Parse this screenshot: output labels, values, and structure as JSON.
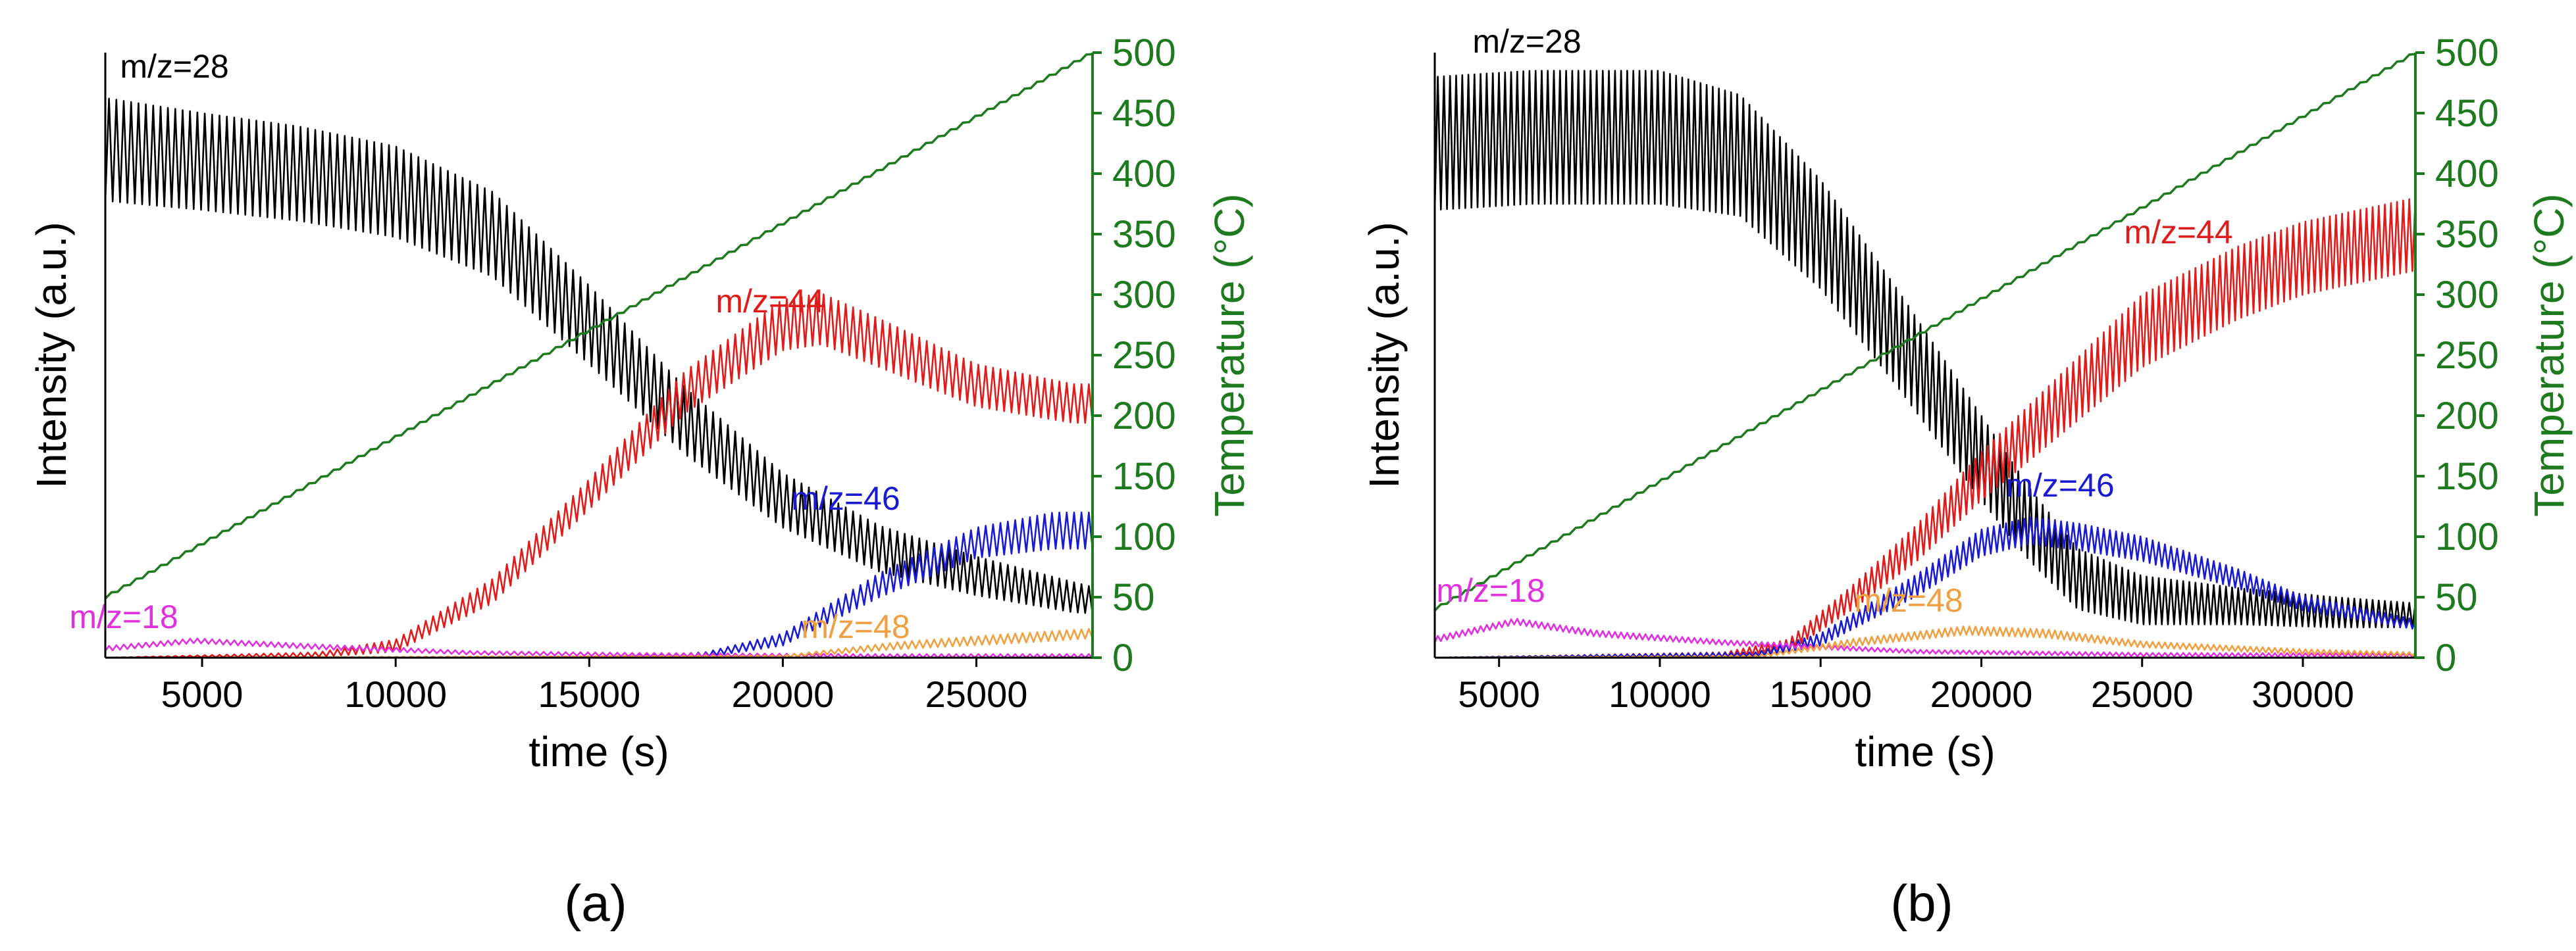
{
  "figure": {
    "panels": [
      "(a)",
      "(b)"
    ]
  },
  "colors": {
    "mz28": "#000000",
    "mz44": "#e01b1b",
    "mz46": "#1a1ad0",
    "mz18": "#e030e0",
    "mz48": "#f0a040",
    "temperature": "#1e7a1e",
    "axis": "#000000"
  },
  "chart_data": [
    {
      "type": "line",
      "panel_label": "(a)",
      "xlabel": "time (s)",
      "ylabel": "Intensity (a.u.)",
      "y2label": "Temperature (°C)",
      "xlim": [
        2500,
        28000
      ],
      "ylim": [
        0,
        1
      ],
      "y2lim": [
        0,
        500
      ],
      "xticks": [
        5000,
        10000,
        15000,
        20000,
        25000
      ],
      "y2ticks": [
        0,
        50,
        100,
        150,
        200,
        250,
        300,
        350,
        400,
        450,
        500
      ],
      "series_labels": [
        "m/z=28",
        "m/z=44",
        "m/z=46",
        "m/z=18",
        "m/z=48"
      ],
      "series": [
        {
          "name": "m/z=28",
          "x": [
            2500,
            5000,
            7500,
            10000,
            12500,
            15000,
            17500,
            20000,
            22500,
            25000,
            27500,
            28000
          ],
          "center": [
            0.84,
            0.82,
            0.8,
            0.77,
            0.7,
            0.55,
            0.39,
            0.26,
            0.18,
            0.135,
            0.1,
            0.095
          ],
          "band": [
            0.085,
            0.08,
            0.078,
            0.075,
            0.07,
            0.065,
            0.055,
            0.045,
            0.038,
            0.032,
            0.025,
            0.022
          ]
        },
        {
          "name": "m/z=44",
          "x": [
            2500,
            8000,
            10000,
            12500,
            15000,
            17500,
            20000,
            21000,
            22500,
            25000,
            27500,
            28000
          ],
          "center": [
            0,
            0.005,
            0.02,
            0.11,
            0.27,
            0.44,
            0.55,
            0.56,
            0.52,
            0.45,
            0.42,
            0.42
          ],
          "band": [
            0,
            0.004,
            0.01,
            0.02,
            0.025,
            0.035,
            0.042,
            0.042,
            0.04,
            0.035,
            0.032,
            0.032
          ]
        },
        {
          "name": "m/z=46",
          "x": [
            2500,
            15000,
            18000,
            20000,
            22500,
            25000,
            27000,
            28000
          ],
          "center": [
            0,
            0,
            0.005,
            0.03,
            0.12,
            0.19,
            0.21,
            0.21
          ],
          "band": [
            0,
            0,
            0.004,
            0.01,
            0.02,
            0.025,
            0.03,
            0.03
          ]
        },
        {
          "name": "m/z=18",
          "x": [
            2500,
            4800,
            8000,
            12000,
            16000,
            22000,
            28000
          ],
          "center": [
            0.015,
            0.028,
            0.018,
            0.008,
            0.005,
            0.003,
            0.003
          ],
          "band": [
            0.004,
            0.004,
            0.004,
            0.003,
            0.003,
            0.003,
            0.003
          ]
        },
        {
          "name": "m/z=48",
          "x": [
            2500,
            20000,
            23000,
            26000,
            28000
          ],
          "center": [
            0,
            0.002,
            0.02,
            0.032,
            0.04
          ],
          "band": [
            0,
            0.002,
            0.006,
            0.008,
            0.008
          ]
        },
        {
          "name": "Temperature",
          "axis": "right",
          "x": [
            2500,
            28000
          ],
          "y": [
            50,
            500
          ]
        }
      ]
    },
    {
      "type": "line",
      "panel_label": "(b)",
      "xlabel": "time (s)",
      "ylabel": "Intensity (a.u.)",
      "y2label": "Temperature (°C)",
      "xlim": [
        3000,
        33500
      ],
      "ylim": [
        0,
        1
      ],
      "y2lim": [
        0,
        500
      ],
      "xticks": [
        5000,
        10000,
        15000,
        20000,
        25000,
        30000
      ],
      "y2ticks": [
        0,
        50,
        100,
        150,
        200,
        250,
        300,
        350,
        400,
        450,
        500
      ],
      "series_labels": [
        "m/z=28",
        "m/z=44",
        "m/z=46",
        "m/z=18",
        "m/z=48"
      ],
      "series": [
        {
          "name": "m/z=28",
          "x": [
            3000,
            6000,
            10000,
            12500,
            15000,
            17500,
            20000,
            21500,
            23000,
            25000,
            28000,
            31000,
            33500
          ],
          "center": [
            0.85,
            0.86,
            0.86,
            0.83,
            0.7,
            0.52,
            0.33,
            0.22,
            0.13,
            0.095,
            0.085,
            0.075,
            0.07
          ],
          "band": [
            0.11,
            0.11,
            0.11,
            0.1,
            0.09,
            0.08,
            0.07,
            0.06,
            0.05,
            0.04,
            0.03,
            0.025,
            0.02
          ]
        },
        {
          "name": "m/z=44",
          "x": [
            3000,
            12000,
            14000,
            16000,
            18000,
            20000,
            22500,
            25000,
            28000,
            30000,
            33500
          ],
          "center": [
            0,
            0.005,
            0.02,
            0.1,
            0.19,
            0.3,
            0.42,
            0.54,
            0.62,
            0.66,
            0.7
          ],
          "band": [
            0,
            0.004,
            0.01,
            0.02,
            0.03,
            0.04,
            0.05,
            0.06,
            0.06,
            0.06,
            0.06
          ]
        },
        {
          "name": "m/z=46",
          "x": [
            3000,
            13000,
            15000,
            18000,
            20000,
            21500,
            23000,
            25000,
            28000,
            30000,
            33500
          ],
          "center": [
            0,
            0.005,
            0.03,
            0.12,
            0.19,
            0.21,
            0.2,
            0.18,
            0.13,
            0.09,
            0.055
          ],
          "band": [
            0,
            0.004,
            0.01,
            0.018,
            0.022,
            0.022,
            0.022,
            0.02,
            0.016,
            0.012,
            0.008
          ]
        },
        {
          "name": "m/z=18",
          "x": [
            3000,
            5500,
            8000,
            12000,
            18000,
            25000,
            33500
          ],
          "center": [
            0.03,
            0.06,
            0.04,
            0.025,
            0.01,
            0.005,
            0.004
          ],
          "band": [
            0.005,
            0.005,
            0.005,
            0.004,
            0.003,
            0.003,
            0.003
          ]
        },
        {
          "name": "m/z=48",
          "x": [
            3000,
            13000,
            16000,
            19500,
            22000,
            25000,
            30000,
            33500
          ],
          "center": [
            0,
            0.002,
            0.025,
            0.045,
            0.04,
            0.022,
            0.01,
            0.006
          ],
          "band": [
            0,
            0.002,
            0.006,
            0.007,
            0.007,
            0.005,
            0.004,
            0.003
          ]
        },
        {
          "name": "Temperature",
          "axis": "right",
          "x": [
            3000,
            33500
          ],
          "y": [
            40,
            500
          ]
        }
      ]
    }
  ]
}
